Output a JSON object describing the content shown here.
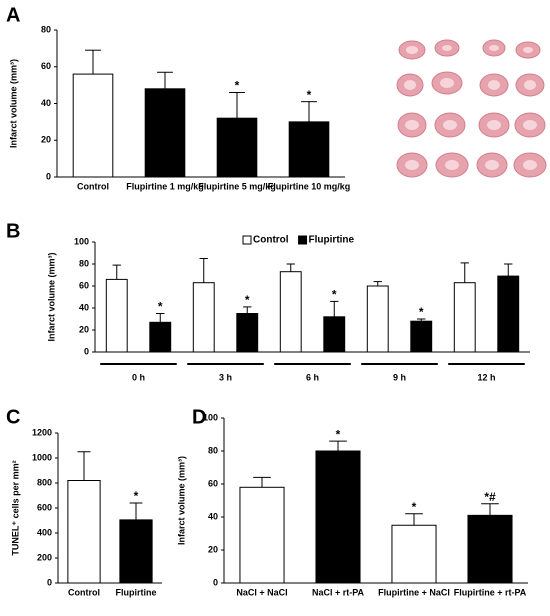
{
  "chart_data": [
    {
      "type": "bar",
      "panel": "A",
      "y_label": "Infarct volume (mm³)",
      "categories": [
        "Control",
        "Flupirtine 1 mg/kg",
        "Flupirtine 5 mg/kg",
        "Flupirtine 10 mg/kg"
      ],
      "values": [
        56,
        48,
        32,
        30
      ],
      "errors": [
        13,
        9,
        14,
        11
      ],
      "colors": [
        "#ffffff",
        "#000000",
        "#000000",
        "#000000"
      ],
      "annotations": [
        null,
        null,
        "*",
        "*"
      ],
      "ylim": [
        0,
        80
      ],
      "yticks": [
        0,
        20,
        40,
        60,
        80
      ]
    },
    {
      "type": "grouped_bar",
      "panel": "B",
      "y_label": "Infarct volume (mm³)",
      "categories": [
        "0 h",
        "3 h",
        "6 h",
        "9 h",
        "12 h"
      ],
      "series": [
        {
          "name": "Control",
          "color": "#ffffff",
          "values": [
            66,
            63,
            73,
            60,
            63
          ],
          "errors": [
            13,
            22,
            7,
            4,
            18
          ],
          "annotations": [
            null,
            null,
            null,
            null,
            null
          ]
        },
        {
          "name": "Flupirtine",
          "color": "#000000",
          "values": [
            27,
            35,
            32,
            28,
            69
          ],
          "errors": [
            8,
            6,
            14,
            2,
            11
          ],
          "annotations": [
            "*",
            "*",
            "*",
            "*",
            null
          ]
        }
      ],
      "legend": "top",
      "ylim": [
        0,
        100
      ],
      "yticks": [
        0,
        20,
        40,
        60,
        80,
        100
      ]
    },
    {
      "type": "bar",
      "panel": "C",
      "y_label": "TUNEL⁺ cells per mm²",
      "categories": [
        "Control",
        "Flupirtine"
      ],
      "values": [
        820,
        505
      ],
      "errors": [
        230,
        135
      ],
      "colors": [
        "#ffffff",
        "#000000"
      ],
      "annotations": [
        null,
        "*"
      ],
      "ylim": [
        0,
        1200
      ],
      "yticks": [
        0,
        200,
        400,
        600,
        800,
        1000,
        1200
      ]
    },
    {
      "type": "bar",
      "panel": "D",
      "y_label": "Infarct volume (mm³)",
      "categories": [
        "NaCl + NaCl",
        "NaCl + rt-PA",
        "Flupirtine + NaCl",
        "Flupirtine + rt-PA"
      ],
      "values": [
        58,
        80,
        35,
        41
      ],
      "errors": [
        6,
        6,
        7,
        7
      ],
      "colors": [
        "#ffffff",
        "#000000",
        "#ffffff",
        "#000000"
      ],
      "annotations": [
        null,
        "*",
        "*",
        "*#"
      ],
      "ylim": [
        0,
        100
      ],
      "yticks": [
        0,
        20,
        40,
        60,
        80,
        100
      ]
    }
  ]
}
